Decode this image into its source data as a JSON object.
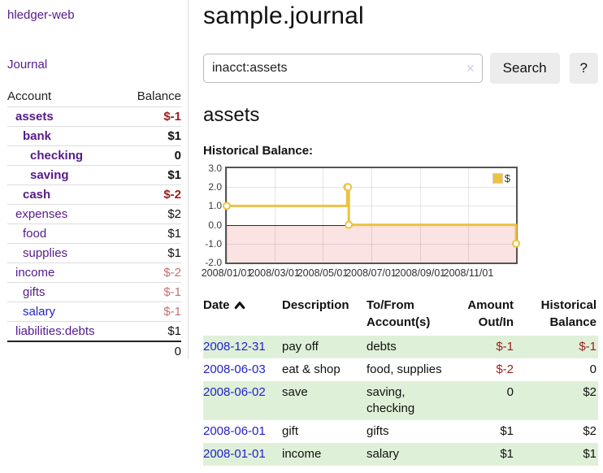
{
  "app": {
    "name": "hledger-web"
  },
  "colors": {
    "link_purple": "#551a8b",
    "link_blue": "#2222cc",
    "negative_strong": "#9d1d1d",
    "negative_soft": "#c96f6f",
    "row_green": "#dff0d8",
    "chart_gold": "#edc240",
    "chart_negative_region": "#fbe3e3",
    "chart_zero_line": "#8b0000",
    "chart_border": "#545454"
  },
  "sidebar": {
    "app_title": "hledger-web",
    "journal_label": "Journal",
    "accounts_table": {
      "headers": {
        "account": "Account",
        "balance": "Balance"
      },
      "rows": [
        {
          "name": "assets",
          "balance": "$-1",
          "depth": 0,
          "bold": true,
          "balance_class": "neg-strong",
          "link_color": "purple"
        },
        {
          "name": "bank",
          "balance": "$1",
          "depth": 1,
          "bold": true,
          "balance_class": "pos",
          "link_color": "purple"
        },
        {
          "name": "checking",
          "balance": "0",
          "depth": 2,
          "bold": true,
          "balance_class": "pos",
          "link_color": "purple"
        },
        {
          "name": "saving",
          "balance": "$1",
          "depth": 2,
          "bold": true,
          "balance_class": "pos",
          "link_color": "purple"
        },
        {
          "name": "cash",
          "balance": "$-2",
          "depth": 1,
          "bold": true,
          "balance_class": "neg-strong",
          "link_color": "purple"
        },
        {
          "name": "expenses",
          "balance": "$2",
          "depth": 0,
          "bold": false,
          "balance_class": "pos",
          "link_color": "purple"
        },
        {
          "name": "food",
          "balance": "$1",
          "depth": 1,
          "bold": false,
          "balance_class": "pos",
          "link_color": "purple"
        },
        {
          "name": "supplies",
          "balance": "$1",
          "depth": 1,
          "bold": false,
          "balance_class": "pos",
          "link_color": "purple"
        },
        {
          "name": "income",
          "balance": "$-2",
          "depth": 0,
          "bold": false,
          "balance_class": "neg-soft",
          "link_color": "purple"
        },
        {
          "name": "gifts",
          "balance": "$-1",
          "depth": 1,
          "bold": false,
          "balance_class": "neg-soft",
          "link_color": "purple"
        },
        {
          "name": "salary",
          "balance": "$-1",
          "depth": 1,
          "bold": false,
          "balance_class": "neg-soft",
          "link_color": "blue"
        },
        {
          "name": "liabilities:debts",
          "balance": "$1",
          "depth": 0,
          "bold": false,
          "balance_class": "pos",
          "link_color": "purple"
        }
      ],
      "total": "0"
    }
  },
  "main": {
    "title": "sample.journal",
    "search": {
      "value": "inacct:assets",
      "clear_icon": "✕",
      "search_button": "Search",
      "help_button": "?"
    },
    "account_heading": "assets",
    "chart_title": "Historical Balance:"
  },
  "chart_data": {
    "type": "line",
    "step": true,
    "title": "Historical Balance",
    "series": [
      {
        "name": "$",
        "color": "#edc240",
        "points": [
          [
            "2008-01-01",
            1
          ],
          [
            "2008-06-01",
            2
          ],
          [
            "2008-06-02",
            2
          ],
          [
            "2008-06-03",
            0
          ],
          [
            "2008-12-31",
            -1
          ]
        ]
      }
    ],
    "xrange": [
      "2008-01-01",
      "2008-12-31"
    ],
    "ylim": [
      -2,
      3
    ],
    "ytick_values": [
      3,
      2,
      1,
      0,
      -1,
      -2
    ],
    "yticks": [
      "3.0",
      "2.0",
      "1.0",
      "0.0",
      "-1.0",
      "-2.0"
    ],
    "xticks": [
      {
        "label": "2008/01/01",
        "date": "2008-01-01"
      },
      {
        "label": "2008/03/01",
        "date": "2008-03-01"
      },
      {
        "label": "2008/05/01",
        "date": "2008-05-01"
      },
      {
        "label": "2008/07/01",
        "date": "2008-07-01"
      },
      {
        "label": "2008/09/01",
        "date": "2008-09-01"
      },
      {
        "label": "2008/11/01",
        "date": "2008-11-01"
      }
    ],
    "legend": {
      "label": "$",
      "position": "top-right"
    },
    "grid": true,
    "negative_region": {
      "from": 0,
      "to": -2
    },
    "marker_style": "open-circle"
  },
  "register": {
    "headers": {
      "date": "Date",
      "description": "Description",
      "accounts": "To/From Account(s)",
      "amount": "Amount Out/In",
      "balance": "Historical Balance"
    },
    "sort": {
      "column": "date",
      "direction": "ascending"
    },
    "rows": [
      {
        "date": "2008-12-31",
        "description": "pay off",
        "accounts": "debts",
        "amount": "$-1",
        "balance": "$-1"
      },
      {
        "date": "2008-06-03",
        "description": "eat & shop",
        "accounts": "food, supplies",
        "amount": "$-2",
        "balance": "0"
      },
      {
        "date": "2008-06-02",
        "description": "save",
        "accounts": "saving, checking",
        "amount": "0",
        "balance": "$2"
      },
      {
        "date": "2008-06-01",
        "description": "gift",
        "accounts": "gifts",
        "amount": "$1",
        "balance": "$2"
      },
      {
        "date": "2008-01-01",
        "description": "income",
        "accounts": "salary",
        "amount": "$1",
        "balance": "$1"
      }
    ]
  }
}
